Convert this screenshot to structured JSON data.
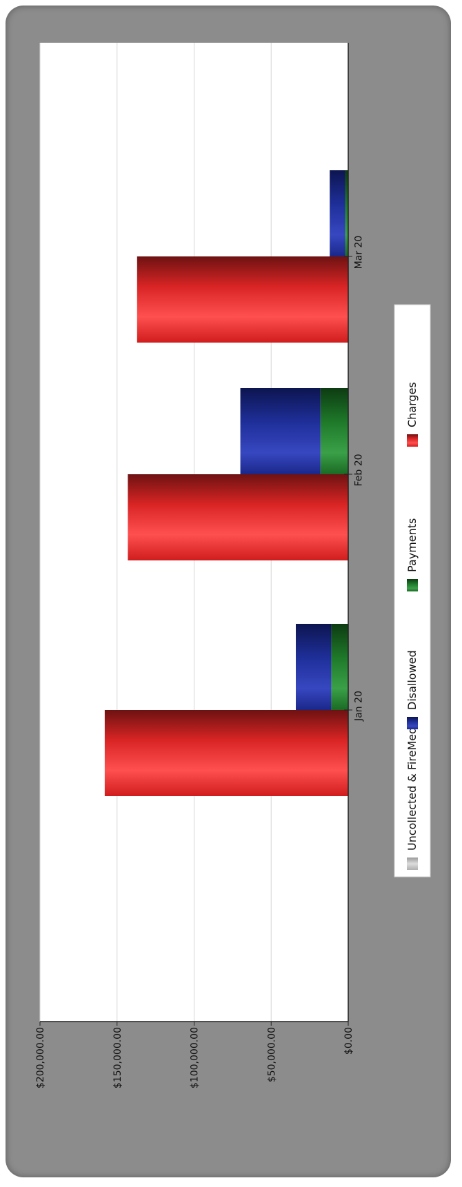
{
  "chart_data": {
    "type": "bar",
    "orientation": "rotated-90",
    "stacked": true,
    "categories": [
      "Jan 20",
      "Feb 20",
      "Mar 20"
    ],
    "series": [
      {
        "name": "Charges",
        "color": "#e8262a",
        "stack": "charges",
        "values": [
          158000,
          143000,
          137000
        ]
      },
      {
        "name": "Payments",
        "color": "#1f7a2a",
        "stack": "collections",
        "values": [
          11000,
          18000,
          2000
        ]
      },
      {
        "name": "Disallowed",
        "color": "#1f2f9a",
        "stack": "collections",
        "values": [
          23000,
          52000,
          10000
        ]
      },
      {
        "name": "Uncollected & FireMed",
        "color": "#c8c8c8",
        "stack": "collections",
        "values": [
          0,
          0,
          0
        ]
      }
    ],
    "y_ticks": [
      "$200,000.00",
      "$150,000.00",
      "$100,000.00",
      "$50,000.00",
      "$0.00"
    ],
    "ylim": [
      0,
      200000
    ],
    "grid": true,
    "legend": {
      "placement": "bottom",
      "entries": [
        "Uncollected & FireMed",
        "Disallowed",
        "Payments",
        "Charges"
      ]
    }
  }
}
